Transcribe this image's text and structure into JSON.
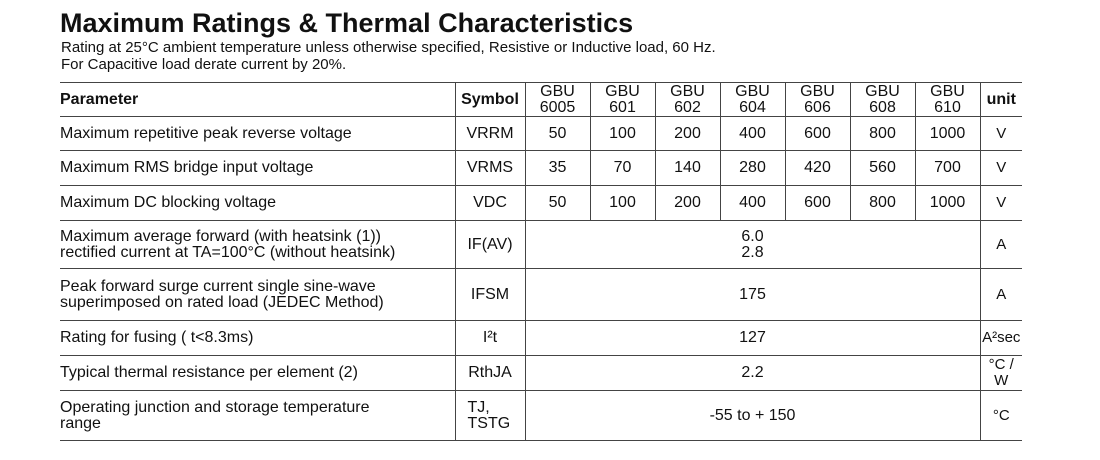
{
  "title": "Maximum Ratings & Thermal Characteristics",
  "notes": [
    "Rating at 25°C ambient temperature unless otherwise specified, Resistive or Inductive load, 60 Hz.",
    "For Capacitive load derate current by 20%."
  ],
  "table": {
    "header": {
      "parameter": "Parameter",
      "symbol": "Symbol",
      "devices": [
        [
          "GBU",
          "6005"
        ],
        [
          "GBU",
          "601"
        ],
        [
          "GBU",
          "602"
        ],
        [
          "GBU",
          "604"
        ],
        [
          "GBU",
          "606"
        ],
        [
          "GBU",
          "608"
        ],
        [
          "GBU",
          "610"
        ]
      ],
      "unit": "unit"
    },
    "rows": [
      {
        "parameter": [
          "Maximum repetitive peak reverse voltage"
        ],
        "symbol": [
          "VRRM"
        ],
        "values": [
          50,
          100,
          200,
          400,
          600,
          800,
          1000
        ],
        "unit": "V"
      },
      {
        "parameter": [
          "Maximum RMS bridge input voltage"
        ],
        "symbol": [
          "VRMS"
        ],
        "values": [
          35,
          70,
          140,
          280,
          420,
          560,
          700
        ],
        "unit": "V"
      },
      {
        "parameter": [
          "Maximum DC blocking voltage"
        ],
        "symbol": [
          "VDC"
        ],
        "values": [
          50,
          100,
          200,
          400,
          600,
          800,
          1000
        ],
        "unit": "V"
      },
      {
        "parameter": [
          "Maximum average forward (with heatsink (1))",
          "rectified current at TA=100°C (without heatsink)"
        ],
        "symbol": [
          "IF(AV)"
        ],
        "value": [
          "6.0",
          "2.8"
        ],
        "unit": "A"
      },
      {
        "parameter": [
          "Peak forward surge current single sine-wave",
          "superimposed on rated load (JEDEC Method)"
        ],
        "symbol": [
          "IFSM"
        ],
        "value": [
          175
        ],
        "unit": "A"
      },
      {
        "parameter": [
          "Rating for fusing ( t<8.3ms)"
        ],
        "symbol": [
          "I²t"
        ],
        "value": [
          127
        ],
        "unit": "A²sec"
      },
      {
        "parameter": [
          "Typical  thermal resistance per element (2)"
        ],
        "symbol": [
          "RthJA"
        ],
        "value": [
          "2.2"
        ],
        "unit": "°C / W"
      },
      {
        "parameter": [
          "Operating junction and storage temperature",
          "range"
        ],
        "symbol": [
          "TJ,",
          "TSTG"
        ],
        "value": [
          "-55 to + 150"
        ],
        "unit": "°C"
      }
    ]
  }
}
